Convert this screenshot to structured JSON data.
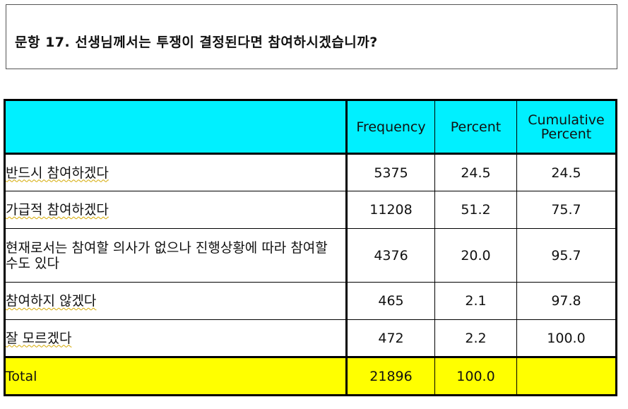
{
  "question": "문항 17. 선생님께서는 투쟁이 결정된다면 참여하시겠습니까?",
  "table": {
    "headers": [
      "",
      "Frequency",
      "Percent",
      "Cumulative Percent"
    ],
    "header_cum_line1": "Cumulative",
    "header_cum_line2": "Percent",
    "rows": [
      {
        "label": "반드시 참여하겠다",
        "frequency": "5375",
        "percent": "24.5",
        "cumulative": "24.5"
      },
      {
        "label": "가급적 참여하겠다",
        "frequency": "11208",
        "percent": "51.2",
        "cumulative": "75.7"
      },
      {
        "label": "현재로서는 참여할 의사가 없으나 진행상황에 따라 참여할 수도 있다",
        "frequency": "4376",
        "percent": "20.0",
        "cumulative": "95.7"
      },
      {
        "label": "참여하지 않겠다",
        "frequency": "465",
        "percent": "2.1",
        "cumulative": "97.8"
      },
      {
        "label": "잘 모르겠다",
        "frequency": "472",
        "percent": "2.2",
        "cumulative": "100.0"
      }
    ],
    "total": {
      "label": "Total",
      "frequency": "21896",
      "percent": "100.0",
      "cumulative": ""
    }
  },
  "colors": {
    "header_bg": "#00f0ff",
    "total_bg": "#ffff00"
  }
}
